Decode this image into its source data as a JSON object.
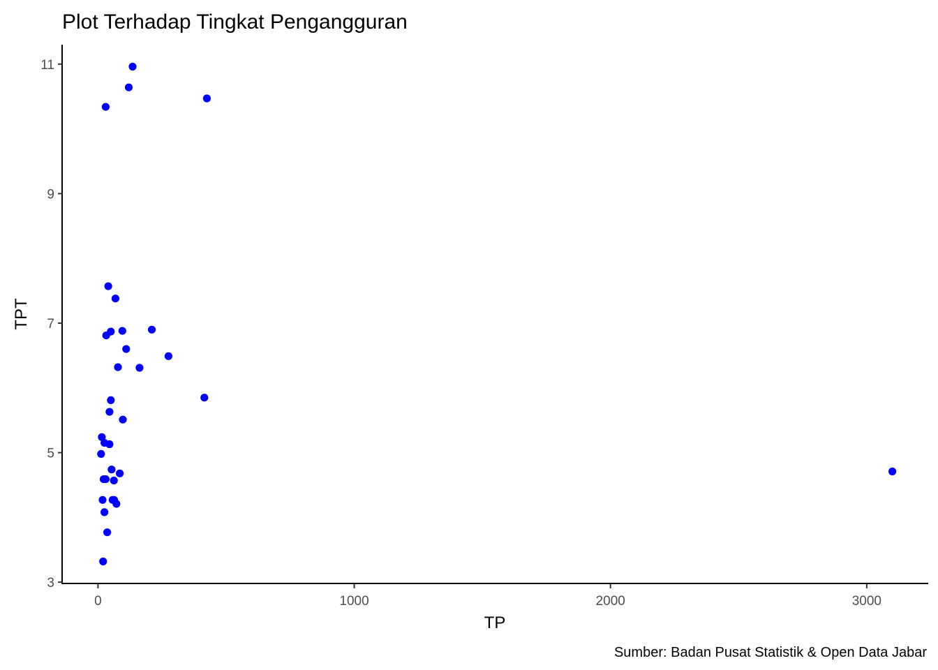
{
  "chart_data": {
    "type": "scatter",
    "title": "Plot Terhadap Tingkat Pengangguran",
    "xlabel": "TP",
    "ylabel": "TPT",
    "caption": "Sumber:  Badan Pusat Statistik & Open Data Jabar",
    "xlim": [
      -140,
      3240
    ],
    "ylim": [
      2.98,
      11.3
    ],
    "xticks": [
      0,
      1000,
      2000,
      3000
    ],
    "xtick_labels": [
      "0",
      "1000",
      "2000",
      "3000"
    ],
    "yticks": [
      3,
      5,
      7,
      9,
      11
    ],
    "ytick_labels": [
      "3",
      "5",
      "7",
      "9",
      "11"
    ],
    "grid": false,
    "point_color": "#0000ff",
    "points": [
      {
        "x": 135,
        "y": 10.96
      },
      {
        "x": 120,
        "y": 10.64
      },
      {
        "x": 30,
        "y": 10.34
      },
      {
        "x": 425,
        "y": 10.47
      },
      {
        "x": 40,
        "y": 7.57
      },
      {
        "x": 68,
        "y": 7.38
      },
      {
        "x": 50,
        "y": 6.87
      },
      {
        "x": 95,
        "y": 6.88
      },
      {
        "x": 210,
        "y": 6.9
      },
      {
        "x": 32,
        "y": 6.81
      },
      {
        "x": 110,
        "y": 6.6
      },
      {
        "x": 275,
        "y": 6.49
      },
      {
        "x": 78,
        "y": 6.32
      },
      {
        "x": 162,
        "y": 6.31
      },
      {
        "x": 415,
        "y": 5.85
      },
      {
        "x": 50,
        "y": 5.81
      },
      {
        "x": 45,
        "y": 5.63
      },
      {
        "x": 97,
        "y": 5.51
      },
      {
        "x": 15,
        "y": 5.24
      },
      {
        "x": 25,
        "y": 5.15
      },
      {
        "x": 45,
        "y": 5.13
      },
      {
        "x": 12,
        "y": 4.98
      },
      {
        "x": 53,
        "y": 4.74
      },
      {
        "x": 85,
        "y": 4.68
      },
      {
        "x": 22,
        "y": 4.59
      },
      {
        "x": 30,
        "y": 4.59
      },
      {
        "x": 62,
        "y": 4.57
      },
      {
        "x": 18,
        "y": 4.27
      },
      {
        "x": 57,
        "y": 4.27
      },
      {
        "x": 63,
        "y": 4.27
      },
      {
        "x": 72,
        "y": 4.21
      },
      {
        "x": 25,
        "y": 4.08
      },
      {
        "x": 36,
        "y": 3.77
      },
      {
        "x": 20,
        "y": 3.32
      },
      {
        "x": 3100,
        "y": 4.71
      }
    ]
  }
}
